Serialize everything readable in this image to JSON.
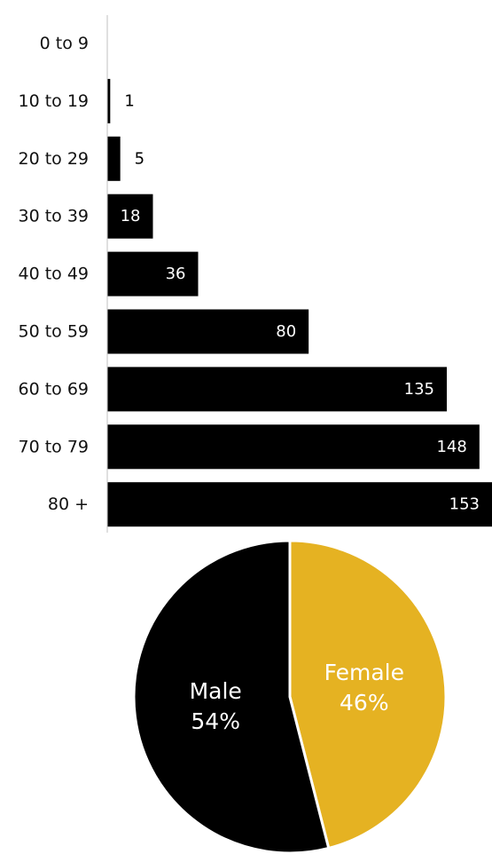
{
  "chart_data": [
    {
      "type": "bar",
      "orientation": "horizontal",
      "categories": [
        "0 to 9",
        "10 to 19",
        "20 to 29",
        "30 to 39",
        "40 to 49",
        "50 to 59",
        "60 to 69",
        "70 to 79",
        "80 +"
      ],
      "values": [
        0,
        1,
        5,
        18,
        36,
        80,
        135,
        148,
        153
      ],
      "data_labels": [
        "",
        "1",
        "5",
        "18",
        "36",
        "80",
        "135",
        "148",
        "153"
      ],
      "title": "",
      "xlabel": "",
      "ylabel": "",
      "xlim": [
        0,
        153
      ],
      "grid": false,
      "legend": "none",
      "colors": {
        "bar": "#000000",
        "axis": "#d0d0d0",
        "label_inside": "#ffffff",
        "label_outside": "#000000"
      }
    },
    {
      "type": "pie",
      "slices": [
        {
          "label": "Female",
          "value": 46,
          "display": "46%",
          "color": "#e5b222",
          "text_color": "#ffffff"
        },
        {
          "label": "Male",
          "value": 54,
          "display": "54%",
          "color": "#000000",
          "text_color": "#ffffff"
        }
      ],
      "title": "",
      "legend": "none",
      "start": "top",
      "direction": "clockwise",
      "slice_border_color": "#ffffff"
    }
  ]
}
